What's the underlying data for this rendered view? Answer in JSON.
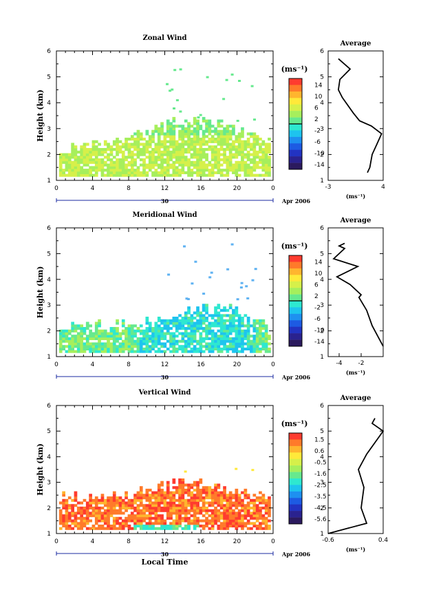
{
  "chart_data": [
    {
      "type": "heatmap",
      "title": "Zonal Wind",
      "ylabel": "Height (km)",
      "xticks": [
        "0",
        "4",
        "8",
        "12",
        "16",
        "20",
        "0"
      ],
      "yticks": [
        "1",
        "2",
        "3",
        "4",
        "5",
        "6"
      ],
      "ylim": [
        1,
        6
      ],
      "xlim": [
        0,
        24
      ],
      "date_label": "30",
      "month_label": "Apr 2006",
      "colorbar": {
        "unit": "(ms⁻¹)",
        "labels": [
          "14",
          "10",
          "6",
          "2",
          "-2",
          "-6",
          "-10",
          "-14"
        ],
        "range": [
          -14,
          14
        ]
      },
      "profile": {
        "title": "Average",
        "xlabel": "(ms⁻¹)",
        "xticks": [
          "-3",
          "4"
        ],
        "xlim": [
          -3,
          4
        ],
        "yticks": [
          "1",
          "2",
          "3",
          "4",
          "5",
          "6"
        ],
        "points": [
          [
            2,
            1.3
          ],
          [
            2.3,
            1.5
          ],
          [
            2.6,
            2
          ],
          [
            3.2,
            2.4
          ],
          [
            3.8,
            2.8
          ],
          [
            2.5,
            3.1
          ],
          [
            1,
            3.3
          ],
          [
            0.2,
            3.6
          ],
          [
            -1.2,
            4.2
          ],
          [
            -1.7,
            4.5
          ],
          [
            -1.5,
            4.9
          ],
          [
            -0.2,
            5.3
          ],
          [
            -1.7,
            5.7
          ]
        ]
      }
    },
    {
      "type": "heatmap",
      "title": "Meridional Wind",
      "ylabel": "Height (km)",
      "xticks": [
        "0",
        "4",
        "8",
        "12",
        "16",
        "20",
        "0"
      ],
      "yticks": [
        "1",
        "2",
        "3",
        "4",
        "5",
        "6"
      ],
      "ylim": [
        1,
        6
      ],
      "xlim": [
        0,
        24
      ],
      "date_label": "30",
      "month_label": "Apr 2006",
      "colorbar": {
        "unit": "(ms⁻¹)",
        "labels": [
          "14",
          "10",
          "6",
          "2",
          "-2",
          "-6",
          "-10",
          "-14"
        ],
        "range": [
          -14,
          14
        ]
      },
      "profile": {
        "title": "Average",
        "xlabel": "(ms⁻¹)",
        "xticks": [
          "-4",
          "-2"
        ],
        "xlim": [
          -5,
          0
        ],
        "yticks": [
          "1",
          "2",
          "3",
          "4",
          "5",
          "6"
        ],
        "points": [
          [
            0,
            1.4
          ],
          [
            -0.5,
            1.8
          ],
          [
            -1,
            2.2
          ],
          [
            -1.5,
            2.8
          ],
          [
            -2.2,
            3.3
          ],
          [
            -2,
            3.4
          ],
          [
            -3,
            3.8
          ],
          [
            -4.2,
            4.1
          ],
          [
            -2.3,
            4.5
          ],
          [
            -4.5,
            4.8
          ],
          [
            -3.5,
            5.2
          ],
          [
            -4.0,
            5.3
          ],
          [
            -3.5,
            5.4
          ]
        ]
      }
    },
    {
      "type": "heatmap",
      "title": "Vertical Wind",
      "ylabel": "Height (km)",
      "xlabel": "Local Time",
      "xticks": [
        "0",
        "4",
        "8",
        "12",
        "16",
        "20",
        "0"
      ],
      "yticks": [
        "1",
        "2",
        "3",
        "4",
        "5",
        "6"
      ],
      "ylim": [
        1,
        6
      ],
      "xlim": [
        0,
        24
      ],
      "date_label": "30",
      "month_label": "Apr 2006",
      "colorbar": {
        "unit": "(ms⁻¹)",
        "labels": [
          "1.5",
          "0.6",
          "-0.5",
          "-1.6",
          "-2.5",
          "-3.5",
          "-4.5",
          "-5.6"
        ],
        "range": [
          -5.6,
          1.5
        ]
      },
      "profile": {
        "title": "Average",
        "xlabel": "(ms⁻¹)",
        "xticks": [
          "-0.6",
          "0.4"
        ],
        "xlim": [
          -0.6,
          0.4
        ],
        "yticks": [
          "1",
          "2",
          "3",
          "4",
          "5",
          "6"
        ],
        "points": [
          [
            -0.6,
            1.0
          ],
          [
            0.1,
            1.4
          ],
          [
            0.0,
            2.0
          ],
          [
            0.05,
            2.8
          ],
          [
            -0.05,
            3.5
          ],
          [
            0.1,
            4.1
          ],
          [
            0.3,
            4.7
          ],
          [
            0.4,
            5.0
          ],
          [
            0.2,
            5.3
          ],
          [
            0.25,
            5.5
          ]
        ]
      }
    }
  ],
  "colors": {
    "scale": [
      "#ff3b2f",
      "#ff7a2a",
      "#ffb52e",
      "#ffe93a",
      "#d6f04a",
      "#a6ef5c",
      "#66e98e",
      "#2ee8d0",
      "#1ec4ee",
      "#1e90f0",
      "#1d5be3",
      "#2233c2",
      "#2a228f",
      "#2b1a5e"
    ]
  }
}
